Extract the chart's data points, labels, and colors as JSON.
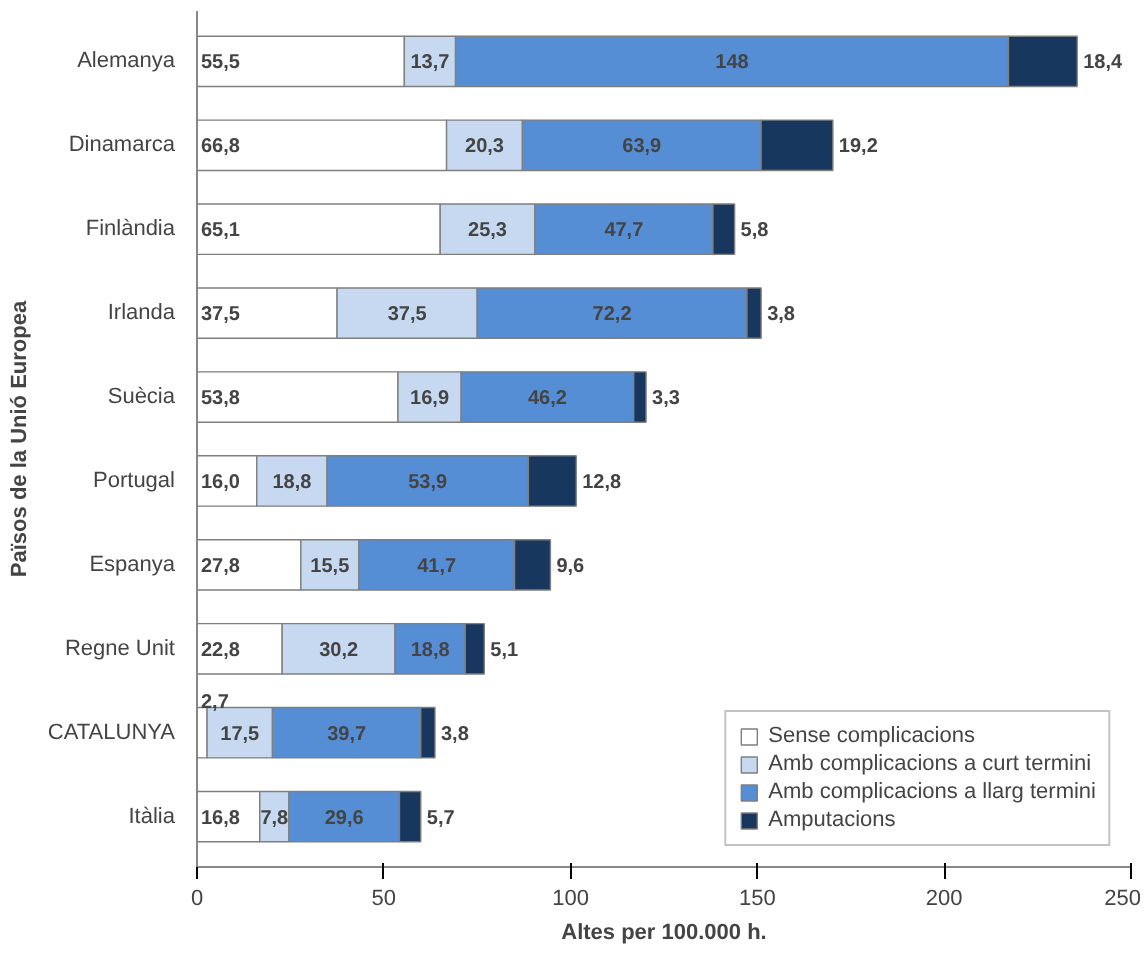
{
  "chart_data": {
    "type": "bar",
    "orientation": "horizontal",
    "stacked": true,
    "xlabel": "Altes per 100.000 h.",
    "ylabel": "Països de la Unió Europea",
    "categories": [
      "Alemanya",
      "Dinamarca",
      "Finlàndia",
      "Irlanda",
      "Suècia",
      "Portugal",
      "Espanya",
      "Regne Unit",
      "CATALUNYA",
      "Itàlia"
    ],
    "series": [
      {
        "name": "Sense complicacions",
        "color": "#ffffff",
        "values": [
          55.5,
          66.8,
          65.1,
          37.5,
          53.8,
          16.0,
          27.8,
          22.8,
          2.7,
          16.8
        ],
        "value_labels": [
          "55,5",
          "66,8",
          "65,1",
          "37,5",
          "53,8",
          "16,0",
          "27,8",
          "22,8",
          "2,7",
          "16,8"
        ]
      },
      {
        "name": "Amb complicacions a curt termini",
        "color": "#c6d9f1",
        "values": [
          13.7,
          20.3,
          25.3,
          37.5,
          16.9,
          18.8,
          15.5,
          30.2,
          17.5,
          7.8
        ],
        "value_labels": [
          "13,7",
          "20,3",
          "25,3",
          "37,5",
          "16,9",
          "18,8",
          "15,5",
          "30,2",
          "17,5",
          "7,8"
        ]
      },
      {
        "name": "Amb complicacions a llarg termini",
        "color": "#558ed5",
        "values": [
          148,
          63.9,
          47.7,
          72.2,
          46.2,
          53.9,
          41.7,
          18.8,
          39.7,
          29.6
        ],
        "value_labels": [
          "148",
          "63,9",
          "47,7",
          "72,2",
          "46,2",
          "53,9",
          "41,7",
          "18,8",
          "39,7",
          "29,6"
        ]
      },
      {
        "name": "Amputacions",
        "color": "#17375e",
        "values": [
          18.4,
          19.2,
          5.8,
          3.8,
          3.3,
          12.8,
          9.6,
          5.1,
          3.8,
          5.7
        ],
        "value_labels": [
          "18,4",
          "19,2",
          "5,8",
          "3,8",
          "3,3",
          "12,8",
          "9,6",
          "5,1",
          "3,8",
          "5,7"
        ]
      }
    ],
    "xlim": [
      0,
      250
    ],
    "xticks": [
      0,
      50,
      100,
      150,
      200,
      250
    ],
    "grid": false,
    "legend": "bottom right"
  }
}
